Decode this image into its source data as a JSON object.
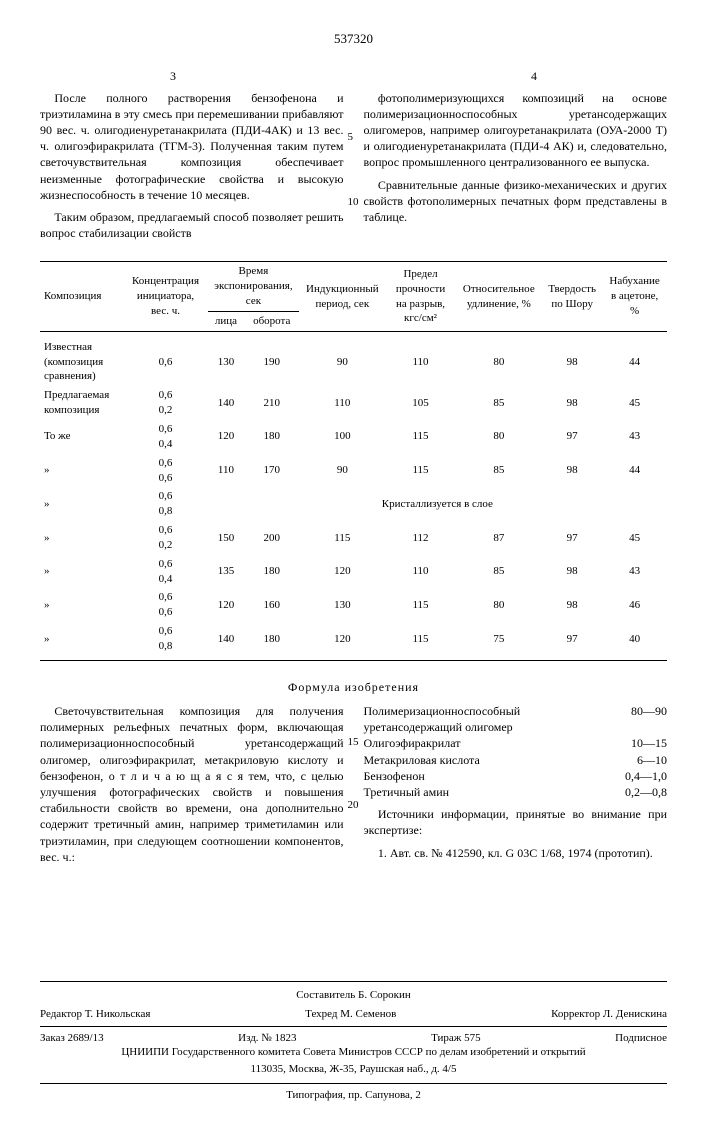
{
  "patent_number": "537320",
  "left_page": "3",
  "right_page": "4",
  "line_numbers": {
    "l5": "5",
    "l10": "10",
    "r15": "15",
    "r20": "20"
  },
  "upper_left": {
    "p1": "После полного растворения бензофенона и триэтиламина в эту смесь при перемешивании прибавляют 90 вес. ч. олигодиенуретанакрилата (ПДИ-4АК) и 13 вес. ч. олигоэфиракрилата (ТГМ-3). Полученная таким путем светочувствительная композиция обеспечивает неизменные фотографические свойства и высокую жизнеспособность в течение 10 месяцев.",
    "p2": "Таким образом, предлагаемый способ позволяет решить вопрос стабилизации свойств"
  },
  "upper_right": {
    "p1": "фотополимеризующихся композиций на основе полимеризационноспособных уретансодержащих олигомеров, например олигоуретанакрилата (ОУА-2000 Т) и олигодиенуретанакрилата (ПДИ-4 АК) и, следовательно, вопрос промышленного централизованного ее выпуска.",
    "p2": "Сравнительные данные физико-механических и других свойств фотополимерных печатных форм представлены в таблице."
  },
  "table": {
    "headers": {
      "c1": "Композиция",
      "c2": "Концентрация инициатора, вес. ч.",
      "c3_top": "Время экспонирования, сек",
      "c3a": "лица",
      "c3b": "оборота",
      "c4": "Индукционный период, сек",
      "c5": "Предел прочности на разрыв, кгс/см²",
      "c6": "Относительное удлинение, %",
      "c7": "Твердость по Шору",
      "c8": "Набухание в ацетоне, %"
    },
    "rows": [
      {
        "label": "Известная (композиция сравнения)",
        "conc": "0,6",
        "t1": "130",
        "t2": "190",
        "ind": "90",
        "str": "110",
        "elo": "80",
        "sh": "98",
        "sw": "44"
      },
      {
        "label": "Предлагаемая композиция",
        "conc": "0,6\n0,2",
        "t1": "140",
        "t2": "210",
        "ind": "110",
        "str": "105",
        "elo": "85",
        "sh": "98",
        "sw": "45"
      },
      {
        "label": "То же",
        "conc": "0,6\n0,4",
        "t1": "120",
        "t2": "180",
        "ind": "100",
        "str": "115",
        "elo": "80",
        "sh": "97",
        "sw": "43"
      },
      {
        "label": "»",
        "conc": "0,6\n0,6",
        "t1": "110",
        "t2": "170",
        "ind": "90",
        "str": "115",
        "elo": "85",
        "sh": "98",
        "sw": "44"
      },
      {
        "label": "»",
        "conc": "0,6\n0,8",
        "crystal": "Кристаллизуется в слое"
      },
      {
        "label": "»",
        "conc": "0,6\n0,2",
        "t1": "150",
        "t2": "200",
        "ind": "115",
        "str": "112",
        "elo": "87",
        "sh": "97",
        "sw": "45"
      },
      {
        "label": "»",
        "conc": "0,6\n0,4",
        "t1": "135",
        "t2": "180",
        "ind": "120",
        "str": "110",
        "elo": "85",
        "sh": "98",
        "sw": "43"
      },
      {
        "label": "»",
        "conc": "0,6\n0,6",
        "t1": "120",
        "t2": "160",
        "ind": "130",
        "str": "115",
        "elo": "80",
        "sh": "98",
        "sw": "46"
      },
      {
        "label": "»",
        "conc": "0,6\n0,8",
        "t1": "140",
        "t2": "180",
        "ind": "120",
        "str": "115",
        "elo": "75",
        "sh": "97",
        "sw": "40"
      }
    ]
  },
  "formula_title": "Формула изобретения",
  "lower_left": {
    "p1": "Светочувствительная композиция для получения полимерных рельефных печатных форм, включающая полимеризационноспособный уретансодержащий олигомер, олигоэфиракрилат, метакриловую кислоту и бензофенон, о т л и ч а ю щ а я с я тем, что, с целью улучшения фотографических свойств и повышения стабильности свойств во времени, она дополнительно содержит третичный амин, например триметиламин или триэтиламин, при следующем соотношении компонентов, вес. ч.:"
  },
  "lower_right": {
    "ingredients": [
      {
        "label": "Полимеризационноспособный уретансодержащий олигомер",
        "val": "80—90"
      },
      {
        "label": "Олигоэфиракрилат",
        "val": "10—15"
      },
      {
        "label": "Метакриловая кислота",
        "val": "6—10"
      },
      {
        "label": "Бензофенон",
        "val": "0,4—1,0"
      },
      {
        "label": "Третичный амин",
        "val": "0,2—0,8"
      }
    ],
    "sources_title": "Источники информации, принятые во внимание при экспертизе:",
    "source1": "1. Авт. св. № 412590, кл. G 03С 1/68, 1974 (прототип)."
  },
  "footer": {
    "compiler": "Составитель Б. Сорокин",
    "editor": "Редактор Т. Никольская",
    "tech": "Техред М. Семенов",
    "corrector": "Корректор Л. Денискина",
    "order": "Заказ 2689/13",
    "izd": "Изд. № 1823",
    "tirage": "Тираж 575",
    "sub": "Подписное",
    "org": "ЦНИИПИ Государственного комитета Совета Министров СССР по делам изобретений и открытий",
    "address": "113035, Москва, Ж-35, Раушская наб., д. 4/5",
    "press": "Типография, пр. Сапунова, 2"
  }
}
